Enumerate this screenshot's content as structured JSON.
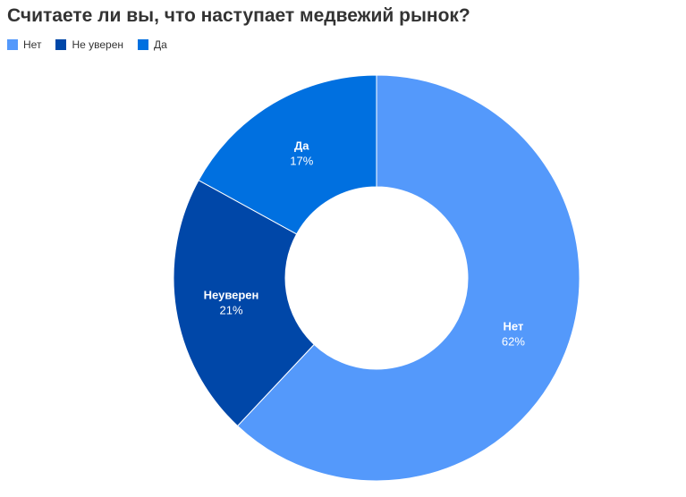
{
  "chart_data": {
    "type": "pie",
    "title": "Считаете ли вы, что наступает медвежий рынок?",
    "legend_position": "top-left",
    "donut": true,
    "legend": [
      {
        "name": "Нет",
        "color": "#5499fb"
      },
      {
        "name": "Не уверен",
        "color": "#0047a8"
      },
      {
        "name": "Да",
        "color": "#0070e0"
      }
    ],
    "slices": [
      {
        "name": "Нет",
        "label": "Нет",
        "value": 62,
        "value_label": "62%",
        "color": "#5499fb"
      },
      {
        "name": "Не уверен",
        "label": "Неуверен",
        "value": 21,
        "value_label": "21%",
        "color": "#0047a8"
      },
      {
        "name": "Да",
        "label": "Да",
        "value": 17,
        "value_label": "17%",
        "color": "#0070e0"
      }
    ]
  }
}
